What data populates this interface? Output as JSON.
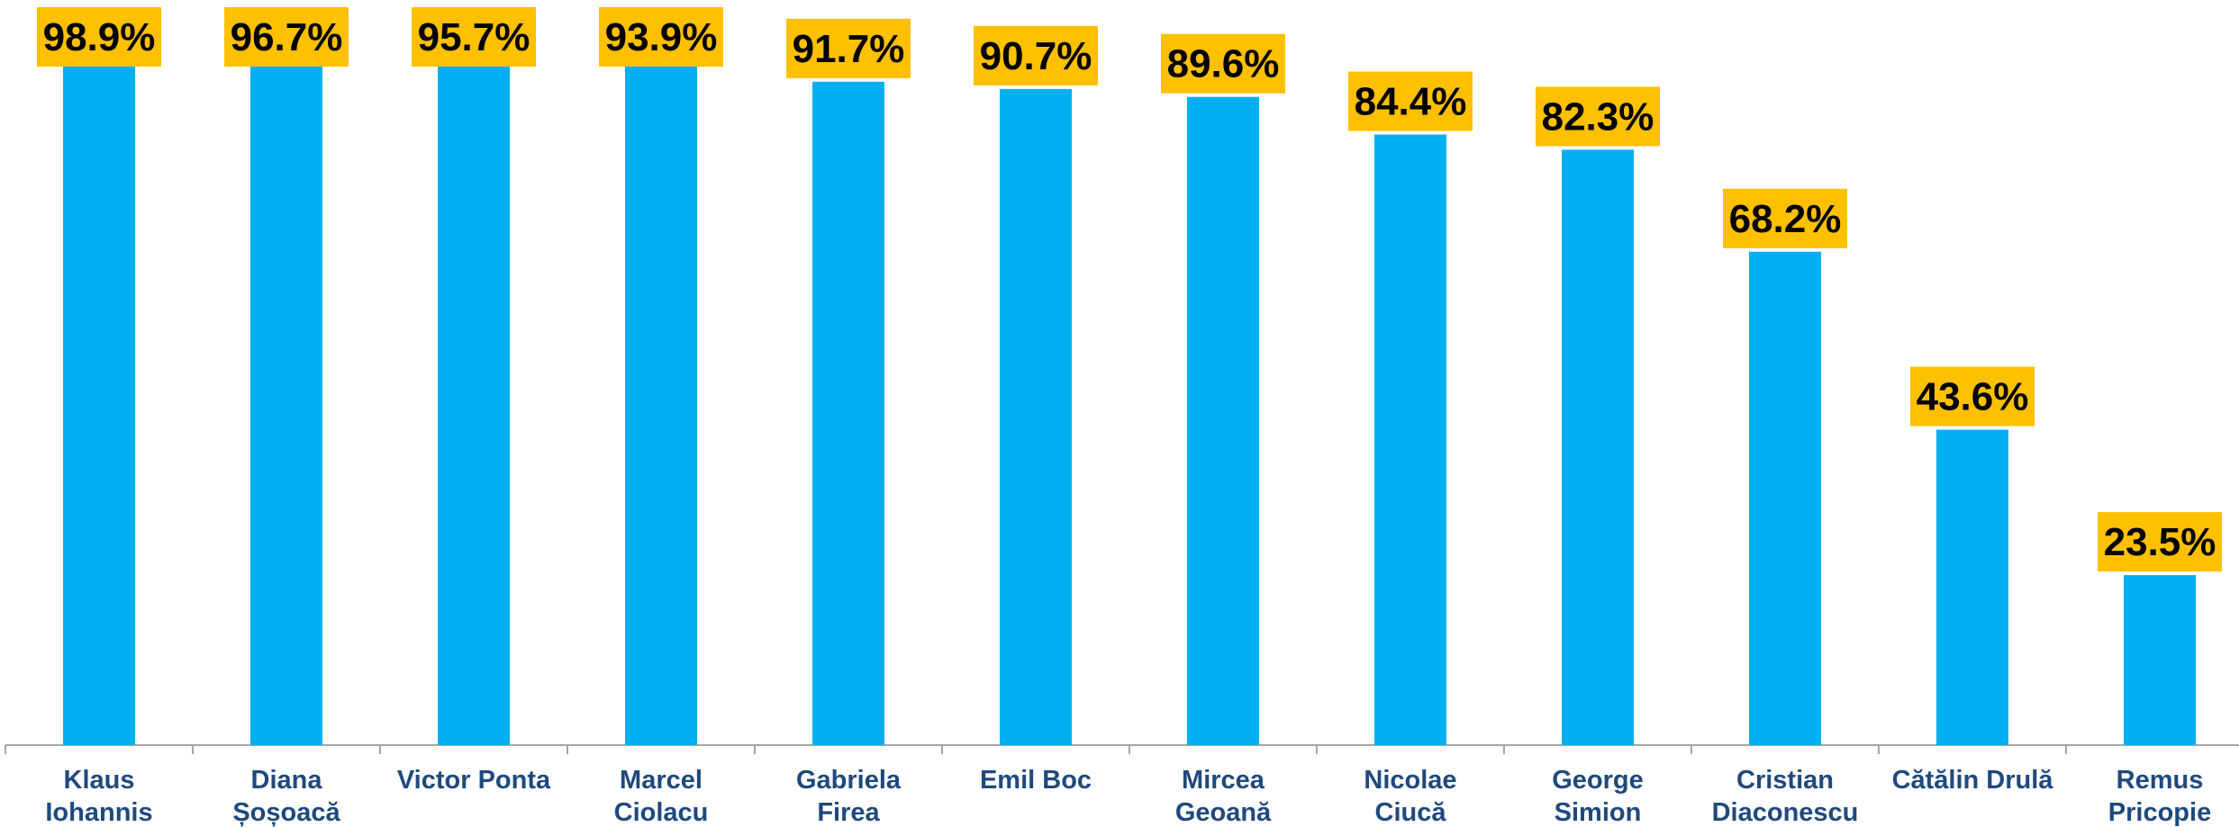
{
  "chart_data": {
    "type": "bar",
    "categories": [
      [
        "Klaus",
        "Iohannis"
      ],
      [
        "Diana",
        "Șoșoacă"
      ],
      [
        "Victor Ponta"
      ],
      [
        "Marcel",
        "Ciolacu"
      ],
      [
        "Gabriela",
        "Firea"
      ],
      [
        "Emil Boc"
      ],
      [
        "Mircea",
        "Geoană"
      ],
      [
        "Nicolae",
        "Ciucă"
      ],
      [
        "George",
        "Simion"
      ],
      [
        "Cristian",
        "Diaconescu"
      ],
      [
        "Cătălin Drulă"
      ],
      [
        "Remus",
        "Pricopie"
      ]
    ],
    "values": [
      98.9,
      96.7,
      95.7,
      93.9,
      91.7,
      90.7,
      89.6,
      84.4,
      82.3,
      68.2,
      43.6,
      23.5
    ],
    "data_labels": [
      "98.9%",
      "96.7%",
      "95.7%",
      "93.9%",
      "91.7%",
      "90.7%",
      "89.6%",
      "84.4%",
      "82.3%",
      "68.2%",
      "43.6%",
      "23.5%"
    ],
    "title": "",
    "xlabel": "",
    "ylabel": "",
    "ylim": [
      0,
      103
    ],
    "grid": false,
    "legend": "none",
    "colors": {
      "bar": "#00b0f0",
      "label_bg": "#ffc000",
      "label_text": "#000000",
      "category_text": "#1f497d",
      "axis": "#a6a6a6"
    }
  }
}
